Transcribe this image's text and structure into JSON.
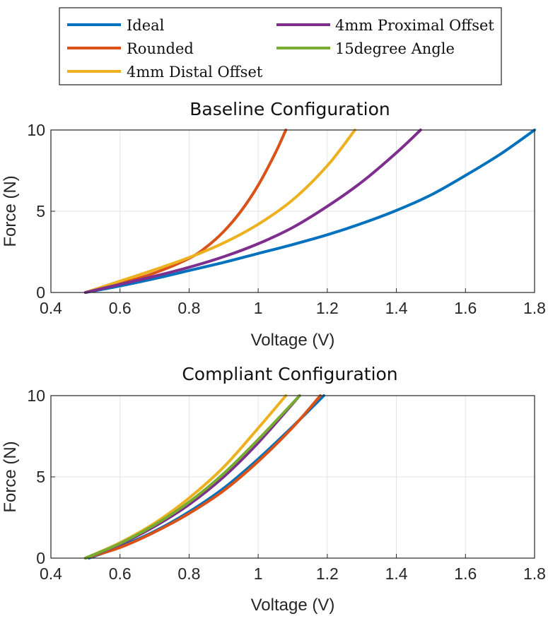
{
  "legend": {
    "entries": [
      {
        "label": "Ideal",
        "color": "#0072BD"
      },
      {
        "label": "4mm Proximal Offset",
        "color": "#7E2F8E"
      },
      {
        "label": "Rounded",
        "color": "#D95319"
      },
      {
        "label": "15degree Angle",
        "color": "#77AC30"
      },
      {
        "label": "4mm Distal Offset",
        "color": "#EDB120"
      }
    ]
  },
  "chart_data": [
    {
      "type": "line",
      "title": "Baseline Configuration",
      "xlabel": "Voltage (V)",
      "ylabel": "Force (N)",
      "xlim": [
        0.4,
        1.8
      ],
      "ylim": [
        0,
        10
      ],
      "xticks": [
        "0.4",
        "0.6",
        "0.8",
        "1",
        "1.2",
        "1.4",
        "1.6",
        "1.8"
      ],
      "yticks": [
        "0",
        "5",
        "10"
      ],
      "grid": true,
      "series": [
        {
          "name": "Ideal",
          "color": "#0072BD",
          "x": [
            0.5,
            0.6,
            0.7,
            0.8,
            0.9,
            1.0,
            1.1,
            1.2,
            1.3,
            1.4,
            1.5,
            1.6,
            1.7,
            1.8
          ],
          "y": [
            0,
            0.4,
            0.85,
            1.35,
            1.85,
            2.4,
            2.95,
            3.55,
            4.25,
            5.05,
            6.0,
            7.2,
            8.5,
            10.0
          ]
        },
        {
          "name": "Rounded",
          "color": "#D95319",
          "x": [
            0.5,
            0.6,
            0.7,
            0.8,
            0.85,
            0.9,
            0.95,
            1.0,
            1.05,
            1.08
          ],
          "y": [
            0,
            0.55,
            1.2,
            2.1,
            2.8,
            3.75,
            5.0,
            6.6,
            8.6,
            10.0
          ]
        },
        {
          "name": "4mm Distal Offset",
          "color": "#EDB120",
          "x": [
            0.5,
            0.6,
            0.7,
            0.8,
            0.9,
            1.0,
            1.1,
            1.2,
            1.28
          ],
          "y": [
            0,
            0.7,
            1.4,
            2.15,
            3.05,
            4.2,
            5.7,
            7.8,
            10.0
          ]
        },
        {
          "name": "4mm Proximal Offset",
          "color": "#7E2F8E",
          "x": [
            0.5,
            0.6,
            0.7,
            0.8,
            0.9,
            1.0,
            1.1,
            1.2,
            1.3,
            1.4,
            1.47
          ],
          "y": [
            0,
            0.5,
            1.0,
            1.55,
            2.2,
            3.0,
            4.0,
            5.3,
            6.8,
            8.6,
            10.0
          ]
        }
      ]
    },
    {
      "type": "line",
      "title": "Compliant Configuration",
      "xlabel": "Voltage (V)",
      "ylabel": "Force (N)",
      "xlim": [
        0.4,
        1.8
      ],
      "ylim": [
        0,
        10
      ],
      "xticks": [
        "0.4",
        "0.6",
        "0.8",
        "1",
        "1.2",
        "1.4",
        "1.6",
        "1.8"
      ],
      "yticks": [
        "0",
        "5",
        "10"
      ],
      "grid": true,
      "series": [
        {
          "name": "Ideal",
          "color": "#0072BD",
          "x": [
            0.51,
            0.6,
            0.7,
            0.8,
            0.9,
            1.0,
            1.1,
            1.19
          ],
          "y": [
            0,
            0.7,
            1.65,
            2.85,
            4.3,
            6.1,
            8.1,
            10.0
          ]
        },
        {
          "name": "Rounded",
          "color": "#D95319",
          "x": [
            0.5,
            0.6,
            0.7,
            0.8,
            0.9,
            1.0,
            1.1,
            1.18
          ],
          "y": [
            0,
            0.65,
            1.6,
            2.75,
            4.15,
            5.95,
            8.05,
            10.0
          ]
        },
        {
          "name": "4mm Distal Offset",
          "color": "#EDB120",
          "x": [
            0.5,
            0.6,
            0.7,
            0.8,
            0.9,
            1.0,
            1.08
          ],
          "y": [
            0,
            0.95,
            2.15,
            3.7,
            5.6,
            8.0,
            10.0
          ]
        },
        {
          "name": "4mm Proximal Offset",
          "color": "#7E2F8E",
          "x": [
            0.5,
            0.6,
            0.7,
            0.8,
            0.9,
            1.0,
            1.12
          ],
          "y": [
            0,
            0.85,
            1.95,
            3.3,
            5.0,
            7.1,
            10.0
          ]
        },
        {
          "name": "15degree Angle",
          "color": "#77AC30",
          "x": [
            0.5,
            0.6,
            0.7,
            0.8,
            0.9,
            1.0,
            1.12
          ],
          "y": [
            0,
            0.9,
            2.05,
            3.45,
            5.2,
            7.3,
            10.0
          ]
        }
      ]
    }
  ]
}
